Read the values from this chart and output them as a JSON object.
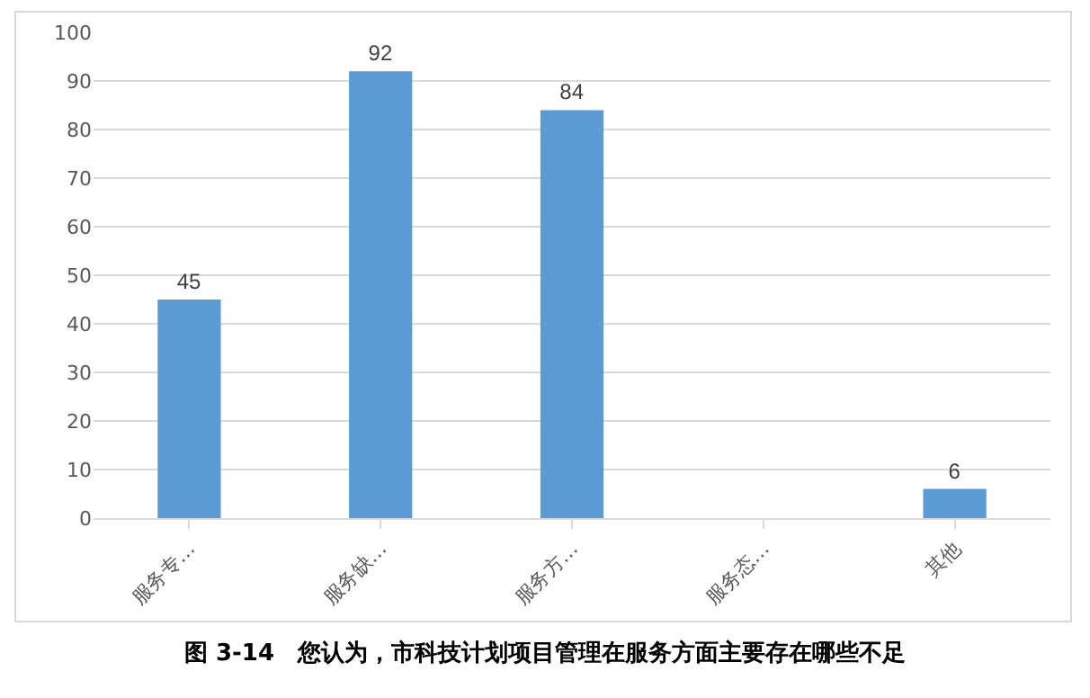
{
  "chart_data": {
    "type": "bar",
    "categories": [
      "服务专…",
      "服务缺…",
      "服务方…",
      "服务态…",
      "其他"
    ],
    "values": [
      45,
      92,
      84,
      null,
      6
    ],
    "value_labels": [
      "45",
      "92",
      "84",
      null,
      "6"
    ],
    "color": "#5b9bd5",
    "ylim": [
      0,
      100
    ],
    "yticks": [
      0,
      10,
      20,
      30,
      40,
      50,
      60,
      70,
      80,
      90,
      100
    ],
    "grid": "y",
    "annotations": [
      "图 3-14　您认为，市科技计划项目管理在服务方面主要存在哪些不足"
    ]
  }
}
